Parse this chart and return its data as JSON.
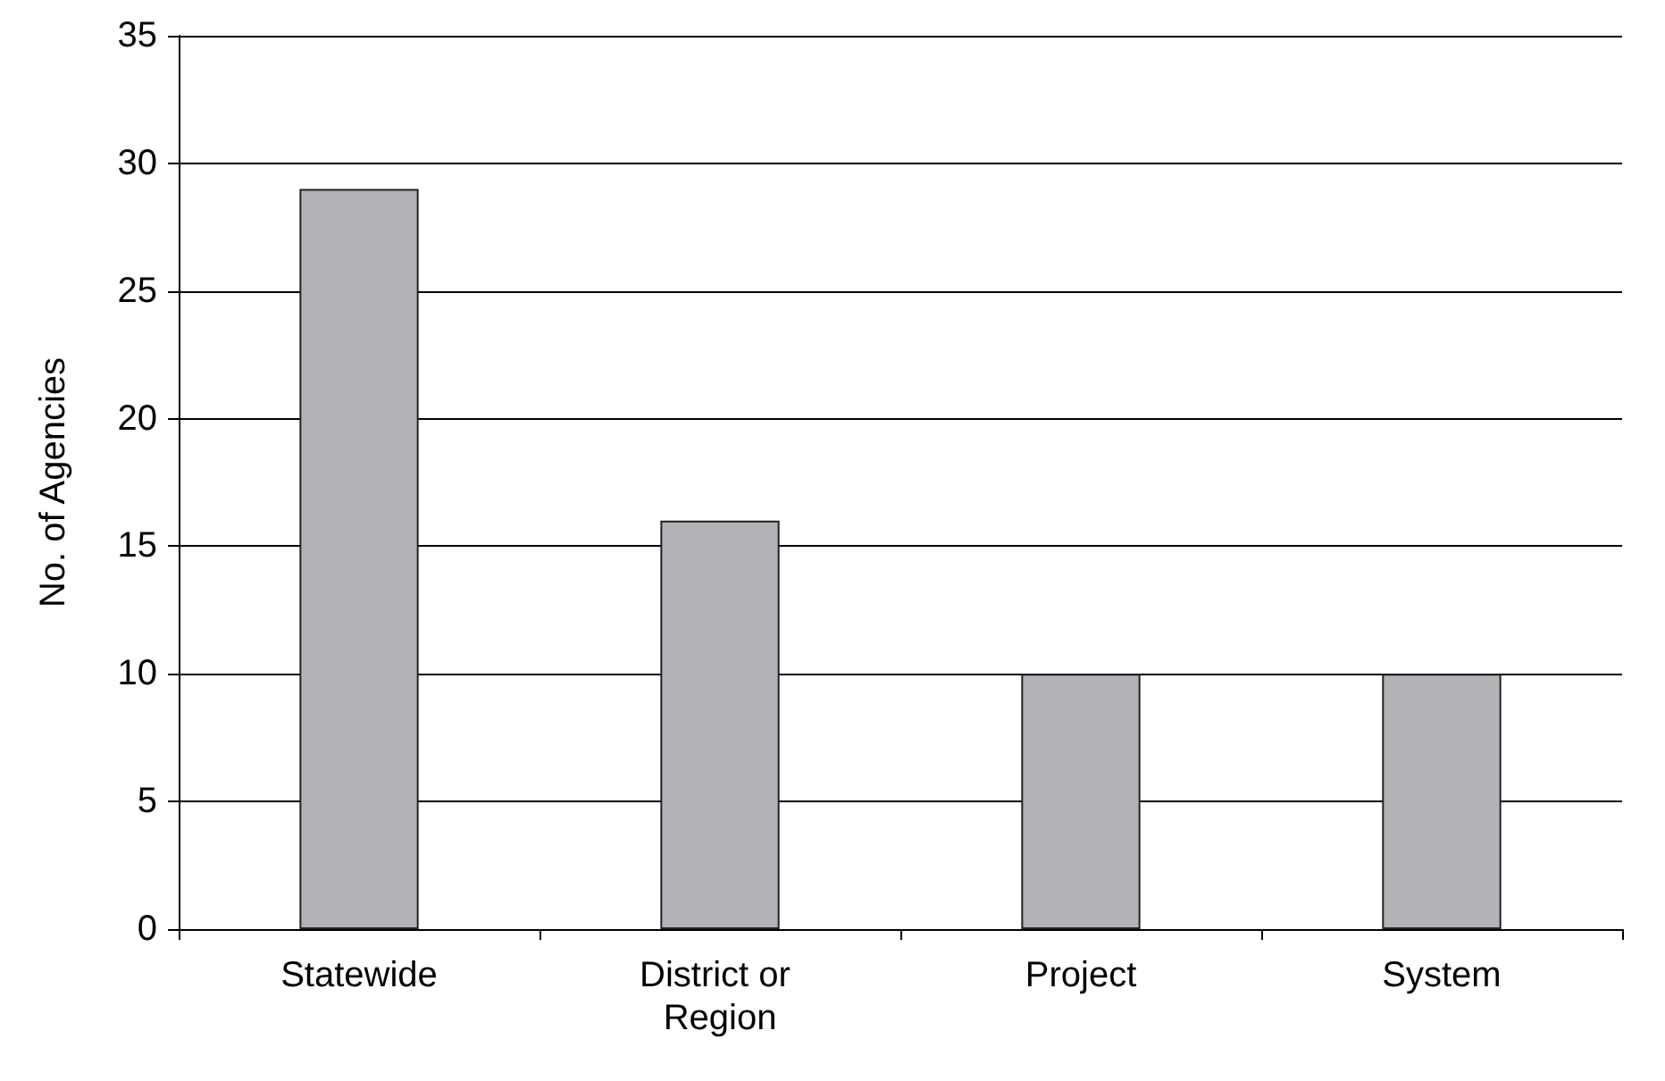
{
  "chart_data": {
    "type": "bar",
    "ylabel": "No. of Agencies",
    "categories": [
      "Statewide",
      "District or Region",
      "Project",
      "System"
    ],
    "values": [
      29,
      16,
      10,
      10
    ],
    "color": "#b1b3b6",
    "ylim": [
      0,
      35
    ],
    "yticks": [
      0,
      5,
      10,
      15,
      20,
      25,
      30,
      35
    ],
    "grid": "y"
  }
}
